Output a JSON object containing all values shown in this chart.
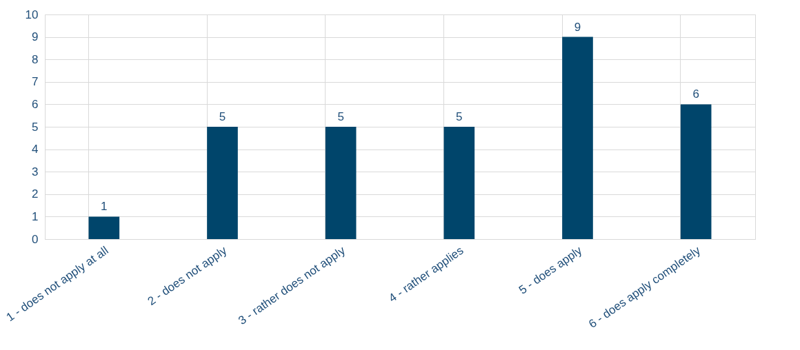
{
  "chart_data": {
    "type": "bar",
    "categories": [
      "1 - does not apply at all",
      "2 - does not apply",
      "3 - rather does not apply",
      "4 - rather applies",
      "5 - does apply",
      "6 - does apply completely"
    ],
    "values": [
      1,
      5,
      5,
      5,
      9,
      6
    ],
    "color": "#00456b",
    "ylim": [
      0,
      10
    ],
    "yticks": [
      0,
      1,
      2,
      3,
      4,
      5,
      6,
      7,
      8,
      9,
      10
    ],
    "grid": true,
    "data_labels": true
  }
}
